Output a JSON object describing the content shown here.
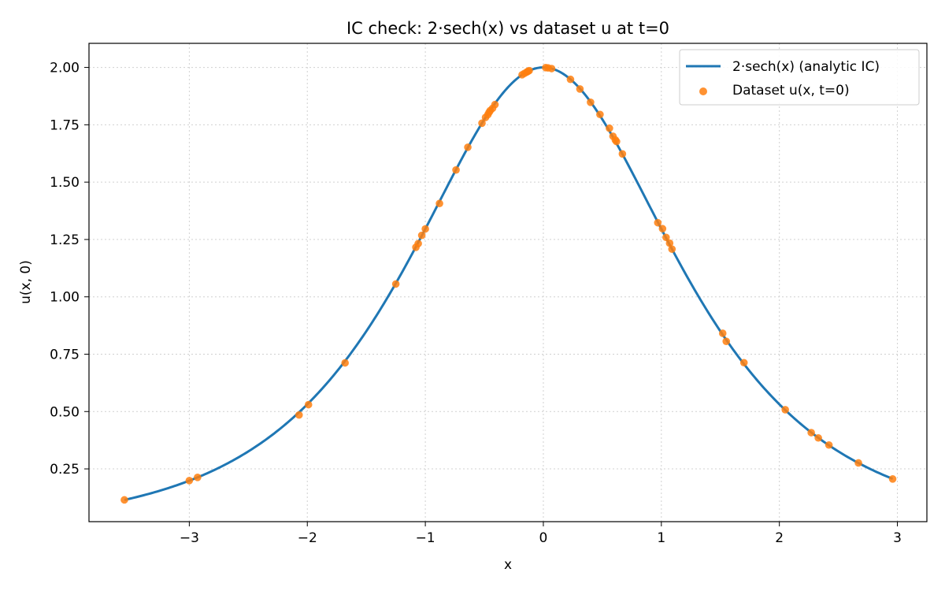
{
  "chart_data": {
    "type": "line",
    "title": "IC check: 2·sech(x) vs dataset u at t=0",
    "xlabel": "x",
    "ylabel": "u(x, 0)",
    "xlim": [
      -3.85,
      3.25
    ],
    "ylim": [
      0.02,
      2.105
    ],
    "x_ticks": [
      -3,
      -2,
      -1,
      0,
      1,
      2,
      3
    ],
    "x_tick_labels": [
      "−3",
      "−2",
      "−1",
      "0",
      "1",
      "2",
      "3"
    ],
    "y_ticks": [
      0.25,
      0.5,
      0.75,
      1.0,
      1.25,
      1.5,
      1.75,
      2.0
    ],
    "y_tick_labels": [
      "0.25",
      "0.50",
      "0.75",
      "1.00",
      "1.25",
      "1.50",
      "1.75",
      "2.00"
    ],
    "grid": true,
    "legend_position": "top-right",
    "colors": {
      "curve": "#1f77b4",
      "points": "#ff7f0e"
    },
    "series": [
      {
        "name": "2·sech(x) (analytic IC)",
        "kind": "line",
        "function": "2*sech(x)",
        "x_range": [
          -3.55,
          2.96
        ]
      },
      {
        "name": "Dataset u(x, t=0)",
        "kind": "scatter",
        "x": [
          -3.55,
          -3.0,
          -2.93,
          -2.07,
          -1.99,
          -1.68,
          -1.25,
          -1.08,
          -1.06,
          -1.03,
          -1.0,
          -0.88,
          -0.74,
          -0.64,
          -0.52,
          -0.49,
          -0.47,
          -0.46,
          -0.45,
          -0.43,
          -0.41,
          -0.18,
          -0.16,
          -0.14,
          -0.13,
          -0.12,
          0.02,
          0.04,
          0.07,
          0.23,
          0.31,
          0.4,
          0.48,
          0.56,
          0.59,
          0.61,
          0.62,
          0.67,
          0.97,
          1.01,
          1.04,
          1.07,
          1.09,
          1.52,
          1.55,
          1.7,
          2.05,
          2.27,
          2.33,
          2.42,
          2.67,
          2.96
        ],
        "y": [
          0.115,
          0.199,
          0.213,
          0.485,
          0.53,
          0.712,
          1.056,
          1.216,
          1.232,
          1.268,
          1.296,
          1.407,
          1.553,
          1.652,
          1.757,
          1.782,
          1.794,
          1.804,
          1.812,
          1.822,
          1.838,
          1.968,
          1.974,
          1.98,
          1.983,
          1.986,
          1.999,
          1.998,
          1.995,
          1.948,
          1.906,
          1.848,
          1.795,
          1.735,
          1.7,
          1.684,
          1.677,
          1.623,
          1.323,
          1.297,
          1.259,
          1.234,
          1.208,
          0.841,
          0.806,
          0.713,
          0.508,
          0.408,
          0.385,
          0.354,
          0.276,
          0.206
        ]
      }
    ]
  }
}
